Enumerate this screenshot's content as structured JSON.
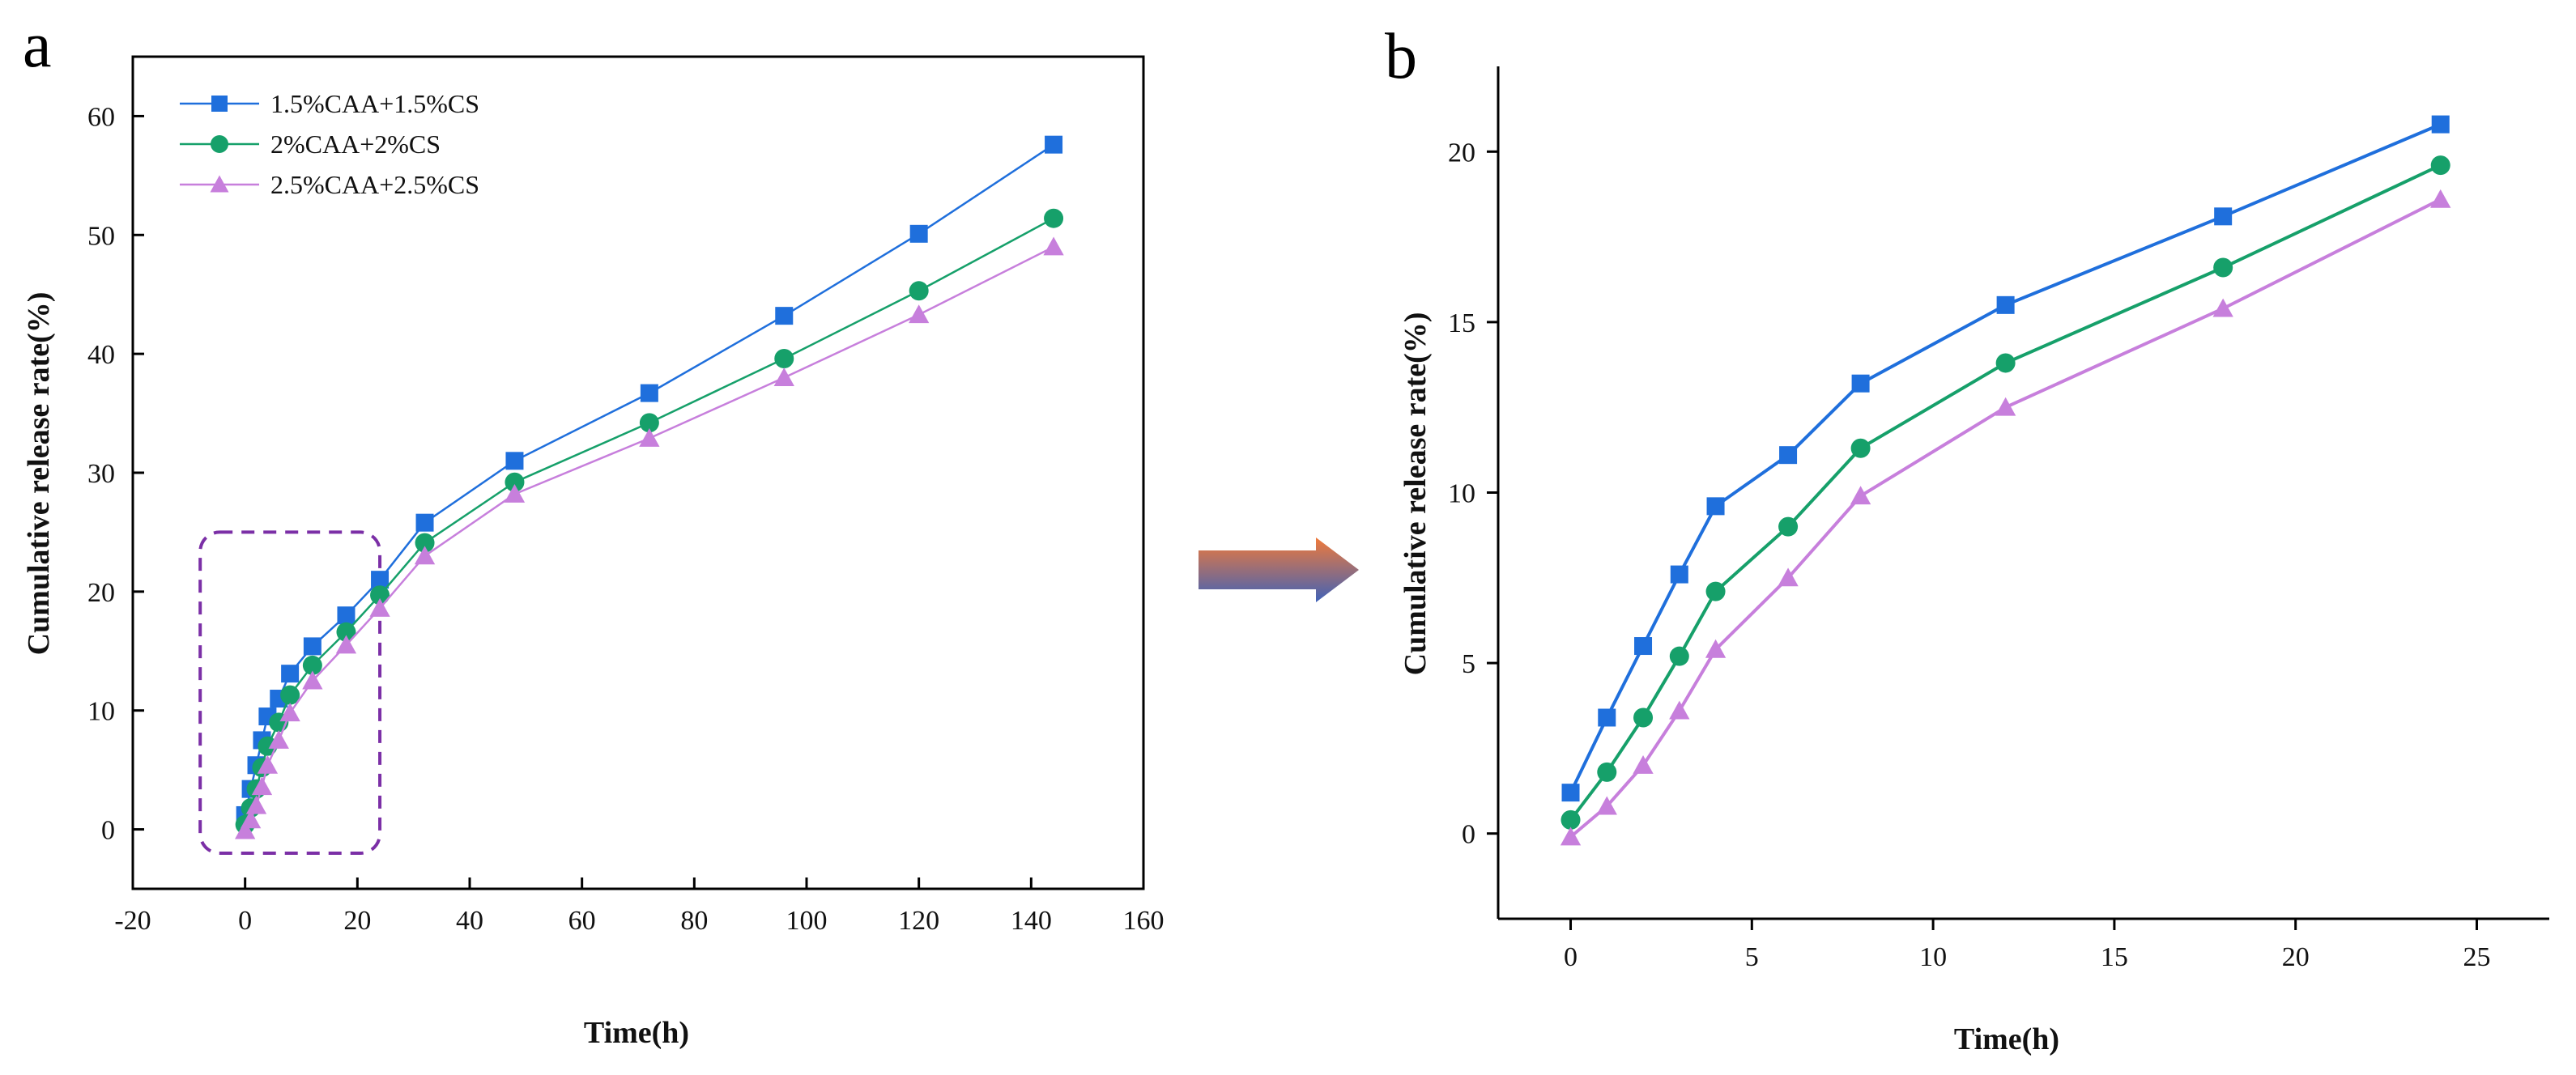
{
  "chart_data": [
    {
      "panel": "a",
      "type": "line",
      "title": "",
      "xlabel": "Time(h)",
      "ylabel": "Cumulative release rate(%)",
      "xlim": [
        -20,
        160
      ],
      "ylim": [
        -5,
        65
      ],
      "xticks": [
        -20,
        0,
        20,
        40,
        60,
        80,
        100,
        120,
        140,
        160
      ],
      "yticks": [
        0,
        10,
        20,
        30,
        40,
        50,
        60
      ],
      "legend_position": "top-left",
      "highlight_box": {
        "x_range": [
          -8,
          24
        ],
        "y_range": [
          -2,
          25
        ],
        "style": "dashed",
        "color": "#7b2fa6"
      },
      "x": [
        0,
        1,
        2,
        3,
        4,
        6,
        8,
        12,
        18,
        24,
        32,
        48,
        72,
        96,
        120,
        144
      ],
      "series": [
        {
          "name": "1.5%CAA+1.5%CS",
          "marker": "square",
          "color": "#1f6fdc",
          "values": [
            1.2,
            3.4,
            5.4,
            7.5,
            9.5,
            11.0,
            13.1,
            15.4,
            18.0,
            21.0,
            25.8,
            31.0,
            36.7,
            43.2,
            50.1,
            57.6
          ]
        },
        {
          "name": "2%CAA+2%CS",
          "marker": "circle",
          "color": "#16a06a",
          "values": [
            0.4,
            1.8,
            3.4,
            5.2,
            7.0,
            9.0,
            11.3,
            13.8,
            16.6,
            19.7,
            24.1,
            29.2,
            34.2,
            39.6,
            45.3,
            51.4
          ]
        },
        {
          "name": "2.5%CAA+2.5%CS",
          "marker": "triangle",
          "color": "#c77fdc",
          "values": [
            -0.1,
            0.8,
            2.0,
            3.6,
            5.4,
            7.5,
            9.8,
            12.5,
            15.5,
            18.6,
            23.0,
            28.2,
            32.9,
            38.0,
            43.3,
            49.0
          ]
        }
      ]
    },
    {
      "panel": "b",
      "type": "line",
      "title": "",
      "xlabel": "Time(h)",
      "ylabel": "Cumulative release rate(%)",
      "xlim": [
        -2,
        27
      ],
      "ylim": [
        -2.5,
        22.5
      ],
      "xticks": [
        0,
        5,
        10,
        15,
        20,
        25
      ],
      "yticks": [
        0,
        5,
        10,
        15,
        20
      ],
      "x": [
        0,
        1,
        2,
        3,
        4,
        6,
        8,
        12,
        18,
        24
      ],
      "series": [
        {
          "name": "1.5%CAA+1.5%CS",
          "marker": "square",
          "color": "#1f6fdc",
          "values": [
            1.2,
            3.4,
            5.5,
            7.6,
            9.6,
            11.1,
            13.2,
            15.5,
            18.1,
            20.8
          ]
        },
        {
          "name": "2%CAA+2%CS",
          "marker": "circle",
          "color": "#16a06a",
          "values": [
            0.4,
            1.8,
            3.4,
            5.2,
            7.1,
            9.0,
            11.3,
            13.8,
            16.6,
            19.6
          ]
        },
        {
          "name": "2.5%CAA+2.5%CS",
          "marker": "triangle",
          "color": "#c77fdc",
          "values": [
            -0.1,
            0.8,
            2.0,
            3.6,
            5.4,
            7.5,
            9.9,
            12.5,
            15.4,
            18.6
          ]
        }
      ]
    }
  ],
  "panel_labels": {
    "a": "a",
    "b": "b"
  },
  "arrow": {
    "color_start": "#f07a3a",
    "color_end": "#3f62b8"
  }
}
